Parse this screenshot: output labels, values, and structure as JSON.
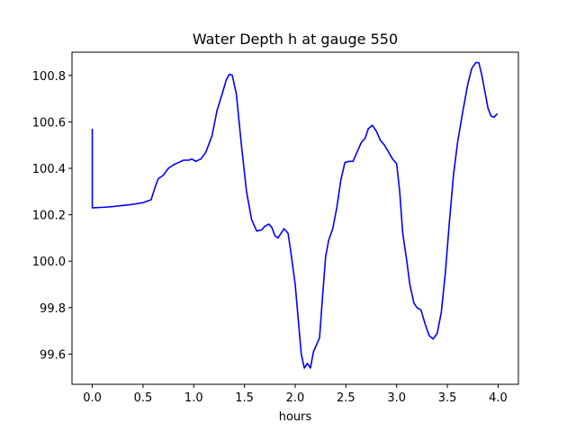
{
  "chart_data": {
    "type": "line",
    "title": "Water Depth h at gauge 550",
    "xlabel": "hours",
    "ylabel": "",
    "xlim": [
      -0.2,
      4.2
    ],
    "ylim": [
      99.47,
      100.9
    ],
    "xticks": [
      0.0,
      0.5,
      1.0,
      1.5,
      2.0,
      2.5,
      3.0,
      3.5,
      4.0
    ],
    "xtick_labels": [
      "0.0",
      "0.5",
      "1.0",
      "1.5",
      "2.0",
      "2.5",
      "3.0",
      "3.5",
      "4.0"
    ],
    "yticks": [
      99.6,
      99.8,
      100.0,
      100.2,
      100.4,
      100.6,
      100.8
    ],
    "ytick_labels": [
      "99.6",
      "99.8",
      "100.0",
      "100.2",
      "100.4",
      "100.6",
      "100.8"
    ],
    "grid": false,
    "legend": "none",
    "series": [
      {
        "color": "#0000ff",
        "points": [
          [
            0.0,
            100.57
          ],
          [
            0.0,
            100.23
          ],
          [
            0.1,
            100.232
          ],
          [
            0.2,
            100.235
          ],
          [
            0.3,
            100.24
          ],
          [
            0.4,
            100.245
          ],
          [
            0.5,
            100.252
          ],
          [
            0.58,
            100.265
          ],
          [
            0.62,
            100.32
          ],
          [
            0.65,
            100.355
          ],
          [
            0.7,
            100.37
          ],
          [
            0.75,
            100.4
          ],
          [
            0.8,
            100.415
          ],
          [
            0.85,
            100.425
          ],
          [
            0.9,
            100.435
          ],
          [
            0.95,
            100.435
          ],
          [
            0.98,
            100.44
          ],
          [
            1.02,
            100.43
          ],
          [
            1.07,
            100.44
          ],
          [
            1.12,
            100.47
          ],
          [
            1.18,
            100.54
          ],
          [
            1.23,
            100.65
          ],
          [
            1.28,
            100.72
          ],
          [
            1.32,
            100.78
          ],
          [
            1.35,
            100.805
          ],
          [
            1.38,
            100.8
          ],
          [
            1.42,
            100.72
          ],
          [
            1.47,
            100.5
          ],
          [
            1.52,
            100.3
          ],
          [
            1.57,
            100.18
          ],
          [
            1.62,
            100.13
          ],
          [
            1.67,
            100.135
          ],
          [
            1.7,
            100.15
          ],
          [
            1.74,
            100.16
          ],
          [
            1.77,
            100.145
          ],
          [
            1.8,
            100.11
          ],
          [
            1.83,
            100.1
          ],
          [
            1.86,
            100.12
          ],
          [
            1.89,
            100.14
          ],
          [
            1.93,
            100.12
          ],
          [
            1.96,
            100.03
          ],
          [
            2.0,
            99.9
          ],
          [
            2.03,
            99.75
          ],
          [
            2.06,
            99.6
          ],
          [
            2.09,
            99.54
          ],
          [
            2.12,
            99.56
          ],
          [
            2.15,
            99.54
          ],
          [
            2.18,
            99.61
          ],
          [
            2.21,
            99.64
          ],
          [
            2.24,
            99.67
          ],
          [
            2.27,
            99.85
          ],
          [
            2.3,
            100.02
          ],
          [
            2.33,
            100.09
          ],
          [
            2.37,
            100.14
          ],
          [
            2.41,
            100.23
          ],
          [
            2.45,
            100.35
          ],
          [
            2.49,
            100.425
          ],
          [
            2.53,
            100.43
          ],
          [
            2.57,
            100.43
          ],
          [
            2.61,
            100.47
          ],
          [
            2.65,
            100.51
          ],
          [
            2.69,
            100.53
          ],
          [
            2.72,
            100.57
          ],
          [
            2.76,
            100.585
          ],
          [
            2.8,
            100.56
          ],
          [
            2.84,
            100.52
          ],
          [
            2.88,
            100.5
          ],
          [
            2.92,
            100.47
          ],
          [
            2.96,
            100.44
          ],
          [
            3.0,
            100.42
          ],
          [
            3.03,
            100.3
          ],
          [
            3.06,
            100.12
          ],
          [
            3.1,
            100.0
          ],
          [
            3.13,
            99.9
          ],
          [
            3.17,
            99.82
          ],
          [
            3.2,
            99.8
          ],
          [
            3.24,
            99.79
          ],
          [
            3.28,
            99.73
          ],
          [
            3.32,
            99.68
          ],
          [
            3.36,
            99.665
          ],
          [
            3.4,
            99.69
          ],
          [
            3.44,
            99.78
          ],
          [
            3.48,
            99.95
          ],
          [
            3.52,
            100.17
          ],
          [
            3.56,
            100.37
          ],
          [
            3.6,
            100.51
          ],
          [
            3.65,
            100.64
          ],
          [
            3.7,
            100.76
          ],
          [
            3.74,
            100.83
          ],
          [
            3.78,
            100.855
          ],
          [
            3.81,
            100.855
          ],
          [
            3.84,
            100.8
          ],
          [
            3.87,
            100.73
          ],
          [
            3.9,
            100.66
          ],
          [
            3.93,
            100.625
          ],
          [
            3.96,
            100.62
          ],
          [
            3.98,
            100.63
          ],
          [
            3.995,
            100.635
          ]
        ]
      }
    ]
  }
}
